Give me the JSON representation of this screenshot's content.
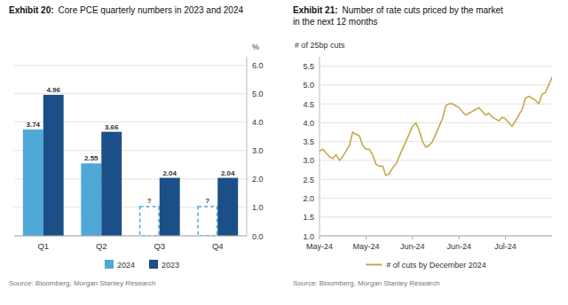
{
  "chart_data": [
    {
      "type": "bar",
      "title": "Exhibit 20:",
      "subtitle": "Core PCE quarterly numbers in 2023 and 2024",
      "categories": [
        "Q1",
        "Q2",
        "Q3",
        "Q4"
      ],
      "series": [
        {
          "name": "2024",
          "color": "#4fa8d8",
          "values": [
            3.74,
            2.55,
            null,
            null
          ],
          "value_labels": [
            "3.74",
            "2.55",
            "?",
            "?"
          ],
          "placeholder_values": [
            null,
            null,
            1.05,
            1.05
          ]
        },
        {
          "name": "2023",
          "color": "#1b4f87",
          "values": [
            4.96,
            3.66,
            2.04,
            2.04
          ]
        }
      ],
      "ylabel": "%",
      "ylim": [
        0.0,
        6.3
      ],
      "yticks": [
        {
          "value": 0.0,
          "label": "0.0"
        },
        {
          "value": 1.0,
          "label": "1.0"
        },
        {
          "value": 2.0,
          "label": "2.0"
        },
        {
          "value": 3.0,
          "label": "3.0"
        },
        {
          "value": 4.0,
          "label": "4.0"
        },
        {
          "value": 5.0,
          "label": "5.0"
        },
        {
          "value": 6.0,
          "label": "6.0"
        }
      ],
      "grid": true,
      "legend": "bottom",
      "data_labels": true,
      "source": "Source: Bloomberg, Morgan Stanley Research"
    },
    {
      "type": "line",
      "title": "Exhibit 21:",
      "subtitle": "Number of rate cuts priced by the market\nin the next 12 months",
      "x": [
        0,
        1,
        2,
        3,
        4,
        5,
        6,
        7,
        8,
        9,
        10,
        11,
        12,
        13,
        14,
        15,
        16,
        17,
        18,
        19,
        20,
        21,
        22,
        23,
        24,
        25,
        26,
        27,
        28,
        29,
        30,
        31,
        32,
        33,
        34,
        35,
        36,
        37,
        38,
        39,
        40,
        41,
        42,
        43,
        44,
        45,
        46,
        47,
        48,
        49,
        50,
        51,
        52,
        53,
        54,
        55,
        56,
        57,
        58,
        59,
        60,
        61,
        62,
        63,
        64,
        65,
        66,
        67,
        68,
        69,
        70
      ],
      "series": [
        {
          "name": "# of cuts by December 2024",
          "color": "#c8a84b",
          "values": [
            3.25,
            3.3,
            3.2,
            3.1,
            3.05,
            3.15,
            3.0,
            3.1,
            3.25,
            3.4,
            3.75,
            3.7,
            3.65,
            3.4,
            3.3,
            3.3,
            3.15,
            2.9,
            2.85,
            2.85,
            2.6,
            2.65,
            2.8,
            2.9,
            3.1,
            3.3,
            3.5,
            3.7,
            3.9,
            4.0,
            3.8,
            3.5,
            3.35,
            3.4,
            3.5,
            3.7,
            3.9,
            4.1,
            4.45,
            4.5,
            4.5,
            4.45,
            4.4,
            4.3,
            4.2,
            4.25,
            4.3,
            4.35,
            4.4,
            4.3,
            4.2,
            4.25,
            4.15,
            4.1,
            4.05,
            4.15,
            4.1,
            4.0,
            3.9,
            4.05,
            4.2,
            4.35,
            4.65,
            4.7,
            4.65,
            4.6,
            4.5,
            4.75,
            4.8,
            5.0,
            5.2
          ]
        }
      ],
      "ylabel": "# of 25bp cuts",
      "xlim": [
        0,
        70
      ],
      "xticks": [
        {
          "value": 0,
          "label": "May-24"
        },
        {
          "value": 14,
          "label": "May-24"
        },
        {
          "value": 28,
          "label": "Jun-24"
        },
        {
          "value": 42,
          "label": "Jun-24"
        },
        {
          "value": 56,
          "label": "Jul-24"
        }
      ],
      "ylim": [
        1.0,
        5.75
      ],
      "yticks": [
        {
          "value": 1.0,
          "label": "1.0"
        },
        1.5,
        {
          "value": 2.0,
          "label": "2.0"
        },
        2.5,
        {
          "value": 3.0,
          "label": "3.0"
        },
        3.5,
        {
          "value": 4.0,
          "label": "4.0"
        },
        4.5,
        {
          "value": 5.0,
          "label": "5.0"
        },
        5.5
      ],
      "grid": true,
      "legend": "bottom",
      "source": "Source: Bloomberg, Morgan Stanley Research"
    }
  ]
}
